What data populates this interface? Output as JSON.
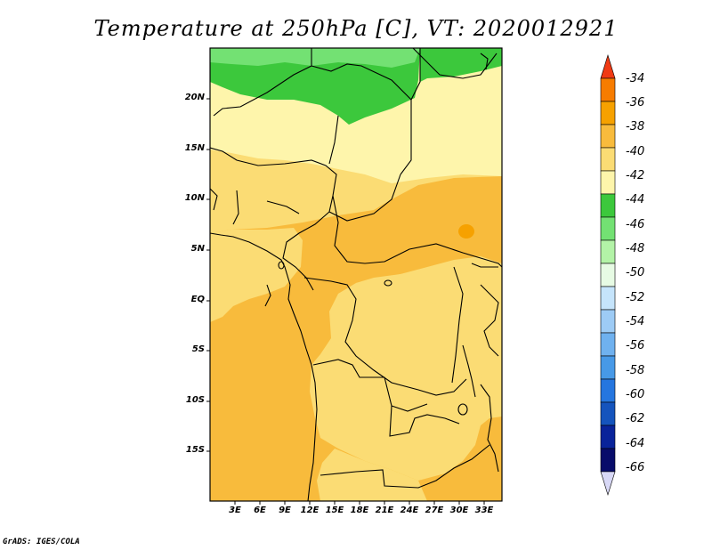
{
  "title": "Temperature at 250hPa [C], VT: 2020012921",
  "credit": "GrADS: IGES/COLA",
  "map": {
    "lat_labels": [
      "20N",
      "15N",
      "10N",
      "5N",
      "EQ",
      "5S",
      "10S",
      "15S"
    ],
    "lon_labels": [
      "3E",
      "6E",
      "9E",
      "12E",
      "15E",
      "18E",
      "21E",
      "24E",
      "27E",
      "30E",
      "33E"
    ]
  },
  "colorbar": {
    "labels": [
      "-34",
      "-36",
      "-38",
      "-40",
      "-42",
      "-44",
      "-46",
      "-48",
      "-50",
      "-52",
      "-54",
      "-56",
      "-58",
      "-60",
      "-62",
      "-64",
      "-66"
    ],
    "colors": [
      "#f03a14",
      "#f77c00",
      "#f6a100",
      "#f8bb3c",
      "#fbdc74",
      "#fef5ab",
      "#3cc83c",
      "#73e173",
      "#b3f3a7",
      "#e7fbe4",
      "#c5e4fb",
      "#9dcbf5",
      "#6fb1ef",
      "#4799e7",
      "#2576df",
      "#1554bd",
      "#09239a",
      "#080c6a",
      "#d8d8f6"
    ]
  }
}
